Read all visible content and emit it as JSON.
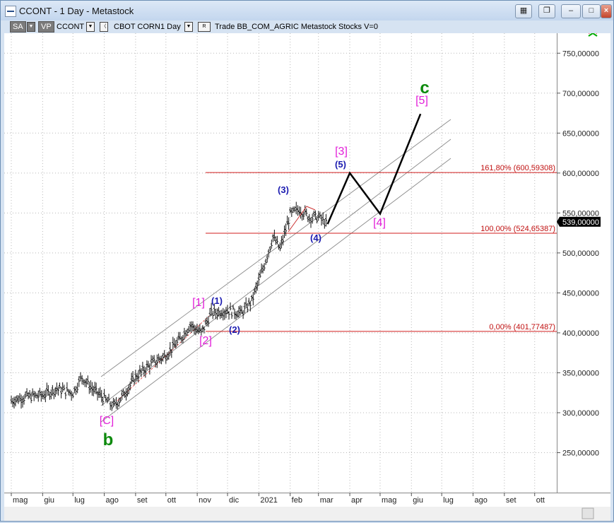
{
  "window": {
    "title": "CCONT - 1 Day - Metastock"
  },
  "toolbar": {
    "sa": "SA",
    "vp": "VP",
    "symbol": "CCONT",
    "name": "CBOT CORN",
    "period": "1 Day",
    "r": "R",
    "rest": "Trade  BB_COM_AGRIC  Metastock  Stocks  V=0"
  },
  "chart_data": {
    "type": "candlestick",
    "y_axis": {
      "range": [
        200,
        775
      ],
      "ticks": [
        "250,00000",
        "300,00000",
        "350,00000",
        "400,00000",
        "450,00000",
        "500,00000",
        "550,00000",
        "600,00000",
        "650,00000",
        "700,00000",
        "750,00000"
      ],
      "current_price": "539,00000"
    },
    "x_axis": {
      "labels": [
        "mag",
        "giu",
        "lug",
        "ago",
        "set",
        "ott",
        "nov",
        "dic",
        "2021",
        "feb",
        "mar",
        "apr",
        "mag",
        "giu",
        "lug",
        "ago",
        "set",
        "ott"
      ]
    },
    "fibonacci": [
      {
        "label": "161,80% (600,59308)",
        "value": 600.59308
      },
      {
        "label": "100,00% (524,65387)",
        "value": 524.65387
      },
      {
        "label": "0,00% (401,77487)",
        "value": 401.77487
      }
    ],
    "wave_labels": [
      {
        "text": "[C]",
        "price": 300,
        "color": "#e21fd8"
      },
      {
        "text": "b",
        "price": 280,
        "color": "#0d8a0d"
      },
      {
        "text": "[1]",
        "price": 430,
        "color": "#e21fd8"
      },
      {
        "text": "[2]",
        "price": 395,
        "color": "#e21fd8"
      },
      {
        "text": "(1)",
        "price": 430,
        "color": "#1b1bb0"
      },
      {
        "text": "(2)",
        "price": 400,
        "color": "#1b1bb0"
      },
      {
        "text": "(3)",
        "price": 568,
        "color": "#1b1bb0"
      },
      {
        "text": "(4)",
        "price": 528,
        "color": "#1b1bb0"
      },
      {
        "text": "(5)",
        "price": 602,
        "color": "#1b1bb0"
      },
      {
        "text": "[3]",
        "price": 615,
        "color": "#e21fd8"
      },
      {
        "text": "[4]",
        "price": 545,
        "color": "#e21fd8"
      },
      {
        "text": "[5]",
        "price": 680,
        "color": "#e21fd8"
      },
      {
        "text": "c",
        "price": 695,
        "color": "#0d8a0d"
      }
    ],
    "projection": [
      {
        "date": "2021-03-10",
        "price": 536
      },
      {
        "date": "2021-04-01",
        "price": 600
      },
      {
        "date": "2021-05-01",
        "price": 549
      },
      {
        "date": "2021-06-10",
        "price": 674
      }
    ]
  }
}
